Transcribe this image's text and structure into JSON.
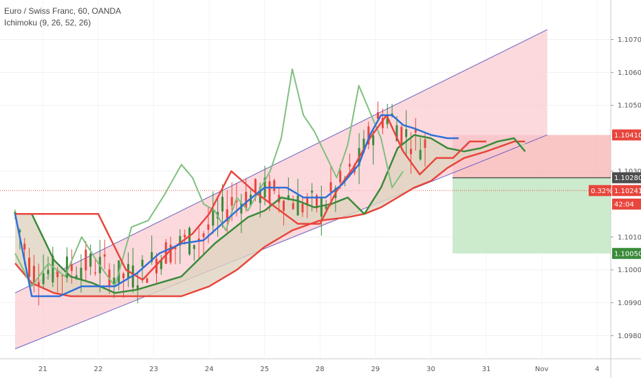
{
  "legend": {
    "symbol": "Euro / Swiss Franc, 60, OANDA",
    "indicator": "Ichimoku (9, 26, 52, 26)"
  },
  "colors": {
    "channel_fill": "#f9c9cf",
    "channel_line": "#6b5fbf",
    "stop_zone": "#f7b2b2",
    "target_zone": "#bfe5bf",
    "tenkan": "#2e6fd6",
    "kijun": "#e8453c",
    "chikou": "#7fbf7f",
    "span_a": "#3a8a3a",
    "span_b": "#e8453c",
    "cloud_fill": "#e0d3c0",
    "price_up": "#3a8a3a",
    "price_down": "#e8453c"
  },
  "chart_data": {
    "type": "line",
    "y_axis": {
      "ticks": [
        "1.10700",
        "1.10600",
        "1.10500",
        "1.10300",
        "1.10100",
        "1.10000",
        "1.09900",
        "1.09800"
      ],
      "tick_values": [
        1.107,
        1.106,
        1.105,
        1.103,
        1.101,
        1.1,
        1.099,
        1.098
      ],
      "range": [
        1.0973,
        1.1082
      ]
    },
    "x_axis": {
      "labels": [
        "21",
        "22",
        "23",
        "24",
        "25",
        "28",
        "29",
        "30",
        "31",
        "Nov",
        "4"
      ]
    },
    "price_tags": [
      {
        "label": "1.10410",
        "value": 1.1041,
        "color": "#e8453c"
      },
      {
        "label": "1.10280",
        "value": 1.1028,
        "color": "#4d4d4d"
      },
      {
        "label": "1.10241",
        "value": 1.10241,
        "color": "#e8453c",
        "extra": "0.32%"
      },
      {
        "label": "42:04",
        "value": 1.102,
        "color": "#e8453c"
      },
      {
        "label": "1.10050",
        "value": 1.1005,
        "color": "#3a8a3a"
      }
    ],
    "position": {
      "entry": 1.1028,
      "stop": 1.1041,
      "target": 1.1005
    },
    "channel": {
      "upper": {
        "start": [
          0,
          1.0993
        ],
        "end": [
          9.6,
          1.1073
        ]
      },
      "lower": {
        "start": [
          0,
          1.0976
        ],
        "end": [
          9.6,
          1.1041
        ]
      }
    },
    "series": [
      {
        "name": "Tenkan",
        "key": "tenkan",
        "x": [
          0,
          0.3,
          0.8,
          1.2,
          1.8,
          2.2,
          2.6,
          3.0,
          3.4,
          3.8,
          4.2,
          4.5,
          4.9,
          5.2,
          5.6,
          5.9,
          6.2,
          6.4,
          6.6,
          6.8,
          7.0,
          7.2,
          7.5,
          7.8,
          8.0
        ],
        "values": [
          1.1017,
          1.0992,
          1.0992,
          1.0995,
          1.0995,
          1.0999,
          1.1005,
          1.1008,
          1.1009,
          1.1015,
          1.1021,
          1.1025,
          1.1025,
          1.1022,
          1.1022,
          1.1026,
          1.1032,
          1.1041,
          1.1047,
          1.1047,
          1.1044,
          1.1043,
          1.1041,
          1.104,
          1.104
        ]
      },
      {
        "name": "Kijun",
        "key": "kijun",
        "x": [
          0,
          0.3,
          1.0,
          1.5,
          2.0,
          2.3,
          2.8,
          3.2,
          3.5,
          3.9,
          4.3,
          4.7,
          5.1,
          5.5,
          5.8,
          6.1,
          6.4,
          6.7,
          7.0,
          7.3,
          7.6,
          7.9,
          8.2,
          8.5
        ],
        "values": [
          1.1017,
          1.1017,
          1.1017,
          1.1017,
          1.1,
          1.0997,
          1.1006,
          1.1011,
          1.1017,
          1.103,
          1.1024,
          1.1019,
          1.1014,
          1.1014,
          1.1024,
          1.1031,
          1.104,
          1.1047,
          1.1036,
          1.1029,
          1.1034,
          1.1034,
          1.1039,
          1.1039
        ]
      },
      {
        "name": "Chikou",
        "key": "chikou",
        "x": [
          0,
          0.3,
          0.6,
          0.9,
          1.2,
          1.5,
          1.8,
          2.1,
          2.4,
          2.7,
          3.0,
          3.2,
          3.4,
          3.6,
          3.8,
          4.0,
          4.2,
          4.4,
          4.6,
          4.8,
          5.0,
          5.2,
          5.4,
          5.6,
          5.8,
          6.0,
          6.2,
          6.4,
          6.6,
          6.8,
          7.0
        ],
        "values": [
          1.1005,
          1.0995,
          1.1002,
          1.0998,
          1.101,
          1.1002,
          1.0995,
          1.1013,
          1.1015,
          1.1023,
          1.1032,
          1.1028,
          1.102,
          1.1018,
          1.1012,
          1.1022,
          1.1018,
          1.1024,
          1.103,
          1.104,
          1.1061,
          1.1047,
          1.1042,
          1.1035,
          1.1028,
          1.1038,
          1.1056,
          1.1048,
          1.104,
          1.1025,
          1.103
        ]
      },
      {
        "name": "Senkou A",
        "key": "span_a",
        "x": [
          0,
          0.3,
          0.7,
          1.0,
          1.4,
          1.8,
          2.2,
          2.6,
          3.0,
          3.3,
          3.6,
          3.9,
          4.2,
          4.5,
          4.8,
          5.1,
          5.4,
          5.7,
          6.0,
          6.3,
          6.6,
          6.9,
          7.2,
          7.5,
          7.8,
          8.1,
          8.4,
          8.7,
          9.0,
          9.2
        ],
        "values": [
          1.1017,
          1.1017,
          1.1003,
          1.0998,
          1.0996,
          1.0993,
          1.0994,
          1.0996,
          1.0998,
          1.1003,
          1.1008,
          1.1012,
          1.1016,
          1.1018,
          1.1022,
          1.1021,
          1.1019,
          1.102,
          1.1022,
          1.1017,
          1.1025,
          1.1037,
          1.1041,
          1.104,
          1.1037,
          1.1036,
          1.1037,
          1.1039,
          1.104,
          1.1036
        ]
      },
      {
        "name": "Senkou B",
        "key": "span_b",
        "x": [
          0,
          0.3,
          0.7,
          1.0,
          1.5,
          2.0,
          2.5,
          3.0,
          3.5,
          4.0,
          4.5,
          4.8,
          5.0,
          5.5,
          6.0,
          6.3,
          6.6,
          6.9,
          7.2,
          7.5,
          7.8,
          8.1,
          8.5,
          9.0,
          9.2
        ],
        "values": [
          1.1002,
          1.0996,
          1.0993,
          1.0992,
          1.0992,
          1.0992,
          1.0992,
          1.0992,
          1.0995,
          1.1,
          1.1007,
          1.101,
          1.1012,
          1.1015,
          1.1016,
          1.1017,
          1.1019,
          1.1022,
          1.1025,
          1.1027,
          1.1031,
          1.1034,
          1.1036,
          1.1039,
          1.1039
        ]
      }
    ]
  }
}
